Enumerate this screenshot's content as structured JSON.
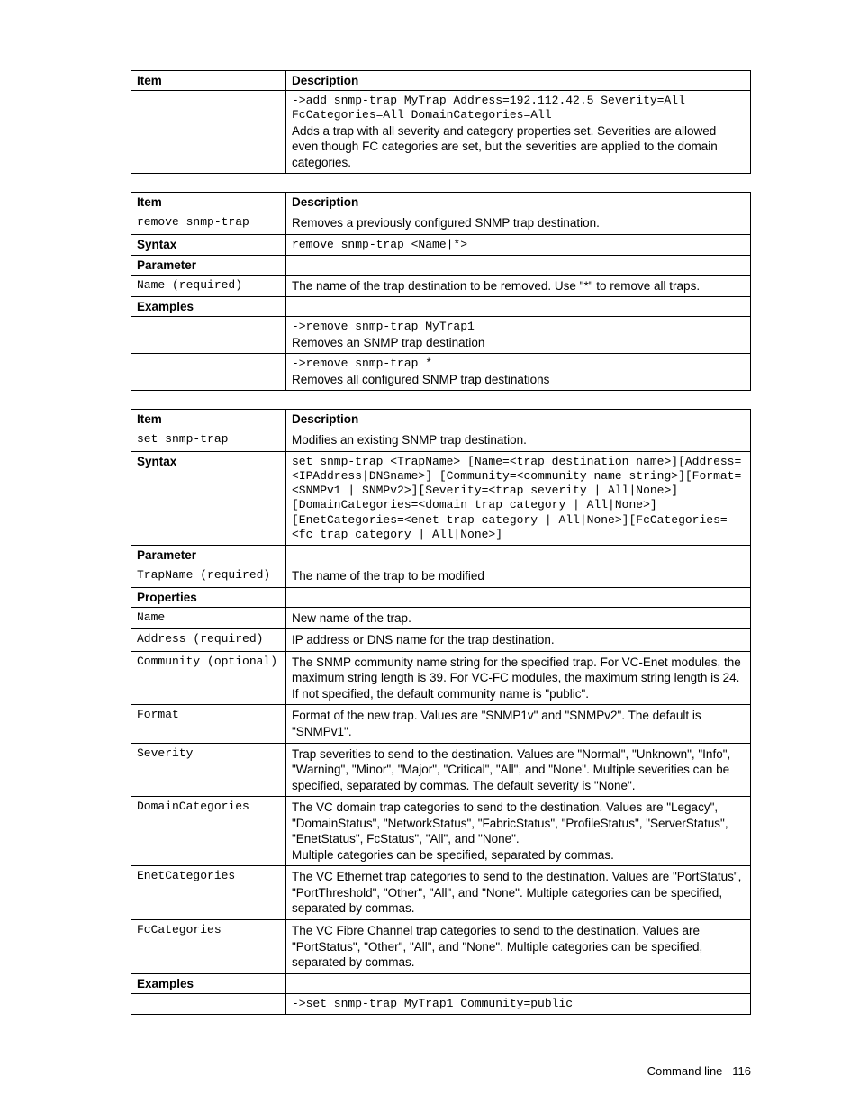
{
  "table1": {
    "headers": {
      "item": "Item",
      "desc": "Description"
    },
    "rows": [
      {
        "item": "",
        "code": "->add snmp-trap MyTrap Address=192.112.42.5 Severity=All FcCategories=All DomainCategories=All",
        "text": "Adds a trap with all severity and category properties set. Severities are allowed even though FC categories are set, but the severities are applied to the domain categories."
      }
    ]
  },
  "table2": {
    "headers": {
      "item": "Item",
      "desc": "Description"
    },
    "rows": [
      {
        "item_mono": "remove snmp-trap",
        "text": "Removes a previously configured SNMP trap destination."
      },
      {
        "item_bold": "Syntax",
        "code": "remove snmp-trap <Name|*>"
      },
      {
        "item_bold": "Parameter",
        "text": ""
      },
      {
        "item_mono": "Name (required)",
        "text": "The name of the trap destination to be removed. Use \"*\" to remove all traps."
      },
      {
        "item_bold": "Examples",
        "text": ""
      },
      {
        "item": "",
        "code": "->remove snmp-trap MyTrap1",
        "text": "Removes an SNMP trap destination"
      },
      {
        "item": "",
        "code": "->remove snmp-trap *",
        "text": "Removes all configured SNMP trap destinations"
      }
    ]
  },
  "table3": {
    "headers": {
      "item": "Item",
      "desc": "Description"
    },
    "rows": [
      {
        "item_mono": "set snmp-trap",
        "text": "Modifies an existing SNMP trap destination."
      },
      {
        "item_bold": "Syntax",
        "code": "set snmp-trap <TrapName> [Name=<trap destination name>][Address=<IPAddress|DNSname>] [Community=<community name string>][Format=<SNMPv1 | SNMPv2>][Severity=<trap severity | All|None>][DomainCategories=<domain trap category | All|None>][EnetCategories=<enet trap category | All|None>][FcCategories=<fc trap category | All|None>]"
      },
      {
        "item_bold": "Parameter",
        "text": ""
      },
      {
        "item_mono": "TrapName (required)",
        "text": "The name of the trap to be modified"
      },
      {
        "item_bold": "Properties",
        "text": ""
      },
      {
        "item_mono": "Name",
        "text": "New name of the trap."
      },
      {
        "item_mono": "Address (required)",
        "text": "IP address or DNS name for the trap destination."
      },
      {
        "item_mono": "Community (optional)",
        "text": "The SNMP community name string for the specified trap. For VC-Enet modules, the maximum string length is 39. For VC-FC modules, the maximum string length is 24. If not specified, the default community name is \"public\"."
      },
      {
        "item_mono": "Format",
        "text": "Format of the new trap. Values are \"SNMP1v\" and \"SNMPv2\". The default is \"SNMPv1\"."
      },
      {
        "item_mono": "Severity",
        "text": "Trap severities to send to the destination. Values are \"Normal\", \"Unknown\", \"Info\", \"Warning\", \"Minor\", \"Major\", \"Critical\", \"All\", and \"None\". Multiple severities can be specified, separated by commas. The default severity is \"None\"."
      },
      {
        "item_mono": "DomainCategories",
        "text": "The VC domain trap categories to send to the destination. Values are \"Legacy\", \"DomainStatus\", \"NetworkStatus\", \"FabricStatus\", \"ProfileStatus\", \"ServerStatus\", \"EnetStatus\", FcStatus\", \"All\", and \"None\".\nMultiple categories can be specified, separated by commas."
      },
      {
        "item_mono": "EnetCategories",
        "text": "The VC Ethernet trap categories to send to the destination. Values are \"PortStatus\", \"PortThreshold\", \"Other\", \"All\", and \"None\". Multiple categories can be specified, separated by commas."
      },
      {
        "item_mono": "FcCategories",
        "text": "The VC Fibre Channel trap categories to send to the destination. Values are \"PortStatus\", \"Other\", \"All\", and \"None\". Multiple categories can be specified, separated by commas."
      },
      {
        "item_bold": "Examples",
        "text": ""
      },
      {
        "item": "",
        "code": "->set snmp-trap MyTrap1 Community=public"
      }
    ]
  },
  "footer": {
    "label": "Command line",
    "page": "116"
  }
}
